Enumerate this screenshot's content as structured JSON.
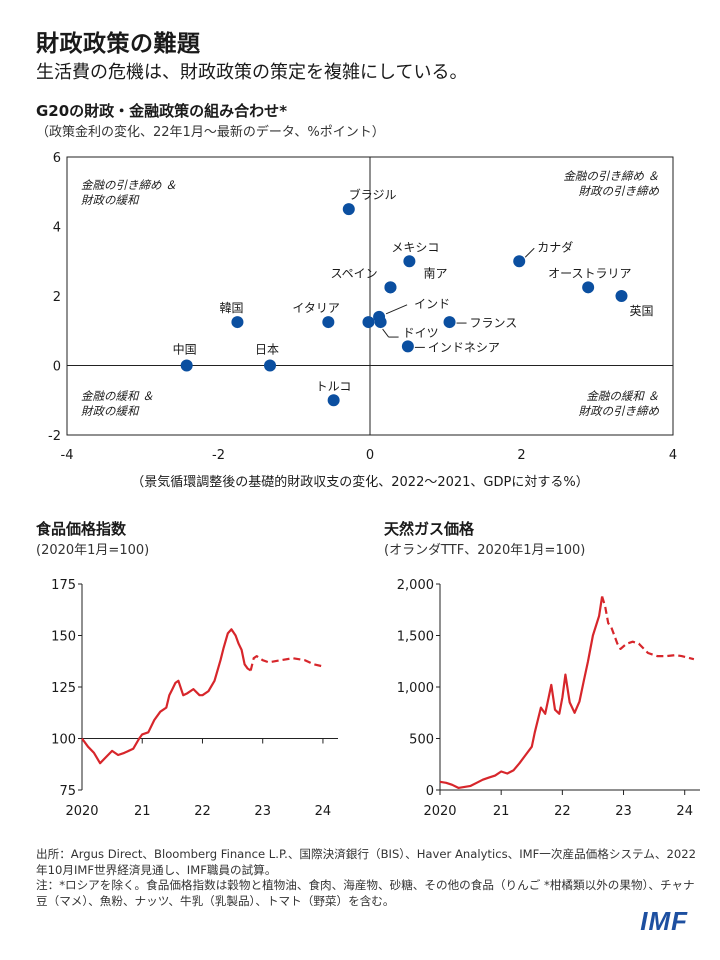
{
  "header": {
    "title": "財政政策の難題",
    "subtitle": "生活費の危機は、財政政策の策定を複雑にしている。"
  },
  "colors": {
    "dot": "#0b4fa0",
    "line": "#d7262b"
  },
  "chart_data": [
    {
      "type": "scatter",
      "title": "G20の財政・金融政策の組み合わせ*",
      "subtitle": "（政策金利の変化、22年1月〜最新のデータ、%ポイント）",
      "xlabel": "（景気循環調整後の基礎的財政収支の変化、2022〜2021、GDPに対する%）",
      "ylabel": "",
      "xlim": [
        -4,
        4
      ],
      "ylim": [
        -2,
        6
      ],
      "xticks": [
        "-4",
        "-2",
        "0",
        "2",
        "4"
      ],
      "yticks": [
        "6",
        "4",
        "2",
        "0",
        "-2"
      ],
      "quadrants": {
        "top_left": [
          "金融の引き締め ＆",
          "財政の緩和"
        ],
        "top_right": [
          "金融の引き締め ＆",
          "財政の引き締め"
        ],
        "bottom_left": [
          "金融の緩和 ＆",
          "財政の緩和"
        ],
        "bottom_right": [
          "金融の緩和 ＆",
          "財政の引き締め"
        ]
      },
      "points": [
        {
          "name": "ブラジル",
          "x": -0.28,
          "y": 4.5
        },
        {
          "name": "メキシコ",
          "x": 0.52,
          "y": 3.0
        },
        {
          "name": "カナダ",
          "x": 1.97,
          "y": 3.0
        },
        {
          "name": "オーストラリア",
          "x": 2.88,
          "y": 2.25
        },
        {
          "name": "英国",
          "x": 3.32,
          "y": 2.0
        },
        {
          "name": "スペイン",
          "x": 0.27,
          "y": 2.25
        },
        {
          "name": "南ア",
          "x": 0.27,
          "y": 2.25
        },
        {
          "name": "インド",
          "x": 0.12,
          "y": 1.4
        },
        {
          "name": "フランス",
          "x": 1.05,
          "y": 1.25
        },
        {
          "name": "ドイツ",
          "x": 0.14,
          "y": 1.25
        },
        {
          "name": "イタリア",
          "x": -0.55,
          "y": 1.25
        },
        {
          "name": "韓国",
          "x": -1.75,
          "y": 1.25
        },
        {
          "name": "インドネシア",
          "x": 0.5,
          "y": 0.55
        },
        {
          "name": "日本",
          "x": -1.32,
          "y": 0.0
        },
        {
          "name": "中国",
          "x": -2.42,
          "y": 0.0
        },
        {
          "name": "トルコ",
          "x": -0.48,
          "y": -1.0
        },
        {
          "name": "",
          "x": -0.02,
          "y": 1.25
        }
      ]
    },
    {
      "type": "line",
      "title": "食品価格指数",
      "subtitle": "(2020年1月=100)",
      "xticks": [
        "2020",
        "21",
        "22",
        "23",
        "24"
      ],
      "yticks": [
        "175",
        "150",
        "125",
        "100",
        "75"
      ],
      "xlim": [
        2020.0,
        2024.25
      ],
      "ylim": [
        75,
        175
      ],
      "actual": [
        [
          2020.0,
          100
        ],
        [
          2020.1,
          96
        ],
        [
          2020.2,
          93
        ],
        [
          2020.3,
          88
        ],
        [
          2020.4,
          91
        ],
        [
          2020.5,
          94
        ],
        [
          2020.6,
          92
        ],
        [
          2020.7,
          93
        ],
        [
          2020.85,
          95
        ],
        [
          2020.95,
          100
        ],
        [
          2021.0,
          102
        ],
        [
          2021.1,
          103
        ],
        [
          2021.2,
          109
        ],
        [
          2021.3,
          113
        ],
        [
          2021.4,
          115
        ],
        [
          2021.45,
          121
        ],
        [
          2021.5,
          124
        ],
        [
          2021.55,
          127
        ],
        [
          2021.6,
          128
        ],
        [
          2021.68,
          121
        ],
        [
          2021.75,
          122
        ],
        [
          2021.85,
          124
        ],
        [
          2021.95,
          121
        ],
        [
          2022.0,
          121
        ],
        [
          2022.1,
          123
        ],
        [
          2022.2,
          128
        ],
        [
          2022.3,
          138
        ],
        [
          2022.35,
          144
        ],
        [
          2022.42,
          151
        ],
        [
          2022.48,
          153
        ],
        [
          2022.55,
          150
        ],
        [
          2022.6,
          146
        ],
        [
          2022.65,
          143
        ],
        [
          2022.7,
          136
        ],
        [
          2022.75,
          134
        ],
        [
          2022.8,
          133
        ]
      ],
      "projection": [
        [
          2022.8,
          133
        ],
        [
          2022.85,
          139
        ],
        [
          2022.9,
          140
        ],
        [
          2023.0,
          138
        ],
        [
          2023.1,
          137
        ],
        [
          2023.3,
          138
        ],
        [
          2023.5,
          139
        ],
        [
          2023.7,
          138
        ],
        [
          2023.85,
          136
        ],
        [
          2024.0,
          135
        ]
      ]
    },
    {
      "type": "line",
      "title": "天然ガス価格",
      "subtitle": "(オランダTTF、2020年1月=100)",
      "xticks": [
        "2020",
        "21",
        "22",
        "23",
        "24"
      ],
      "yticks": [
        "2,000",
        "1,500",
        "1,000",
        "500",
        "0"
      ],
      "xlim": [
        2020.0,
        2024.25
      ],
      "ylim": [
        0,
        2000
      ],
      "actual": [
        [
          2020.0,
          80
        ],
        [
          2020.1,
          70
        ],
        [
          2020.2,
          50
        ],
        [
          2020.3,
          20
        ],
        [
          2020.4,
          30
        ],
        [
          2020.5,
          40
        ],
        [
          2020.6,
          70
        ],
        [
          2020.7,
          100
        ],
        [
          2020.8,
          120
        ],
        [
          2020.9,
          140
        ],
        [
          2021.0,
          180
        ],
        [
          2021.1,
          160
        ],
        [
          2021.2,
          190
        ],
        [
          2021.3,
          260
        ],
        [
          2021.4,
          340
        ],
        [
          2021.5,
          420
        ],
        [
          2021.55,
          560
        ],
        [
          2021.65,
          800
        ],
        [
          2021.72,
          740
        ],
        [
          2021.82,
          1020
        ],
        [
          2021.88,
          780
        ],
        [
          2021.95,
          740
        ],
        [
          2022.0,
          900
        ],
        [
          2022.05,
          1120
        ],
        [
          2022.12,
          850
        ],
        [
          2022.2,
          750
        ],
        [
          2022.28,
          860
        ],
        [
          2022.35,
          1060
        ],
        [
          2022.42,
          1250
        ],
        [
          2022.5,
          1500
        ],
        [
          2022.6,
          1690
        ],
        [
          2022.65,
          1880
        ]
      ],
      "projection": [
        [
          2022.65,
          1880
        ],
        [
          2022.7,
          1780
        ],
        [
          2022.75,
          1620
        ],
        [
          2022.8,
          1580
        ],
        [
          2022.9,
          1420
        ],
        [
          2022.95,
          1370
        ],
        [
          2023.05,
          1420
        ],
        [
          2023.15,
          1440
        ],
        [
          2023.25,
          1420
        ],
        [
          2023.4,
          1330
        ],
        [
          2023.55,
          1300
        ],
        [
          2023.7,
          1300
        ],
        [
          2023.85,
          1310
        ],
        [
          2023.95,
          1300
        ],
        [
          2024.05,
          1285
        ],
        [
          2024.15,
          1270
        ]
      ]
    }
  ],
  "notes": {
    "source": "出所：Argus Direct、Bloomberg Finance L.P.、国際決済銀行（BIS）、Haver Analytics、IMF一次産品価格システム、2022年10月IMF世界経済見通し、IMF職員の試算。",
    "note": "注：*ロシアを除く。食品価格指数は穀物と植物油、食肉、海産物、砂糖、その他の食品（りんご *柑橘類以外の果物）、チャナ豆（マメ）、魚粉、ナッツ、牛乳（乳製品）、トマト（野菜）を含む。"
  },
  "logo": "IMF"
}
